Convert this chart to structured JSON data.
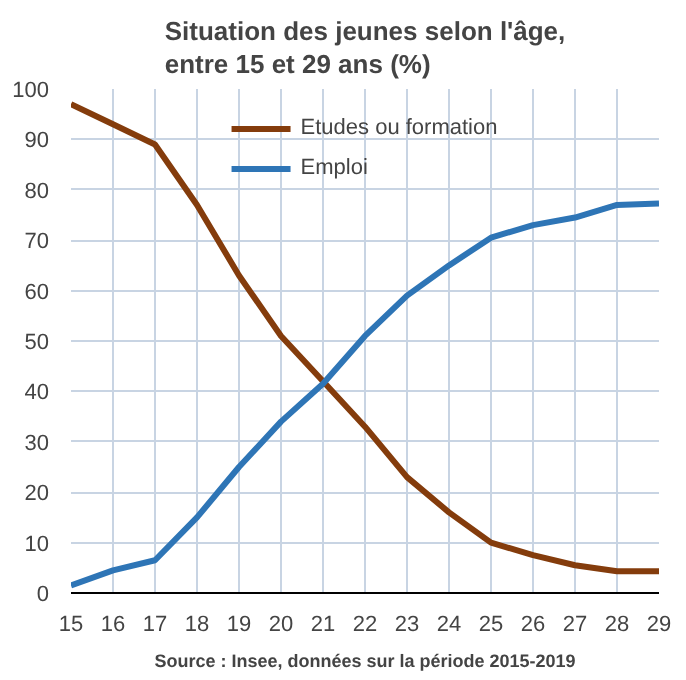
{
  "chart_data": {
    "type": "line",
    "title": "Situation des jeunes selon l'âge,\nentre 15 et 29 ans (%)",
    "x": [
      15,
      16,
      17,
      18,
      19,
      20,
      21,
      22,
      23,
      24,
      25,
      26,
      27,
      28,
      29
    ],
    "series": [
      {
        "name": "Etudes ou formation",
        "color": "#843c0c",
        "values": [
          97,
          93,
          89,
          77,
          63,
          51,
          42,
          33,
          23,
          16,
          10,
          7.5,
          5.5,
          4.3,
          4.3
        ]
      },
      {
        "name": "Emploi",
        "color": "#2e75b6",
        "values": [
          1.5,
          4.5,
          6.5,
          15,
          25,
          34,
          41.5,
          51,
          59,
          65,
          70.5,
          73,
          74.5,
          77,
          77.3
        ]
      }
    ],
    "xlim": [
      15,
      29
    ],
    "xticks": [
      15,
      16,
      17,
      18,
      19,
      20,
      21,
      22,
      23,
      24,
      25,
      26,
      27,
      28,
      29
    ],
    "ylim": [
      0,
      100
    ],
    "yticks": [
      0,
      10,
      20,
      30,
      40,
      50,
      60,
      70,
      80,
      90,
      100
    ],
    "grid": true,
    "legend": "top",
    "marker": "none",
    "line_style": "solid",
    "annotations": [
      "Source : Insee, données sur la période 2015-2019"
    ]
  }
}
